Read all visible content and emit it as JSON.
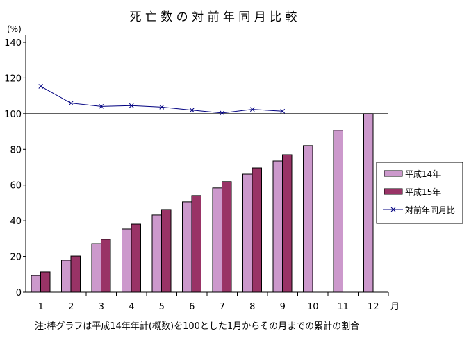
{
  "chart_data": {
    "type": "bar",
    "title": "死 亡 数 の 対 前 年 同 月 比 較",
    "ylabel": "(%)",
    "xlabel": "月",
    "ylim": [
      0,
      140
    ],
    "yticks": [
      0,
      20,
      40,
      60,
      80,
      100,
      120,
      140
    ],
    "categories": [
      "1",
      "2",
      "3",
      "4",
      "5",
      "6",
      "7",
      "8",
      "9",
      "10",
      "11",
      "12"
    ],
    "grid": false,
    "legend_position": "right",
    "series": [
      {
        "name": "平成14年",
        "type": "bar",
        "color": "#CC99CC",
        "values": [
          9.3,
          17.9,
          27.2,
          35.4,
          43.2,
          50.6,
          58.4,
          66.1,
          73.5,
          82.1,
          90.7,
          100
        ]
      },
      {
        "name": "平成15年",
        "type": "bar",
        "color": "#993366",
        "values": [
          11.3,
          20.2,
          29.6,
          38.1,
          46.3,
          54.1,
          61.9,
          69.6,
          77.0,
          null,
          null,
          null
        ]
      },
      {
        "name": "対前年同月比",
        "type": "line",
        "color": "#000080",
        "marker": "x",
        "values": [
          115.3,
          105.9,
          104.1,
          104.5,
          103.7,
          102.0,
          100.4,
          102.4,
          101.4,
          null,
          null,
          null
        ]
      }
    ],
    "reference_line": 100,
    "note": "注:棒グラフは平成14年年計(概数)を100とした1月からその月までの累計の割合"
  }
}
